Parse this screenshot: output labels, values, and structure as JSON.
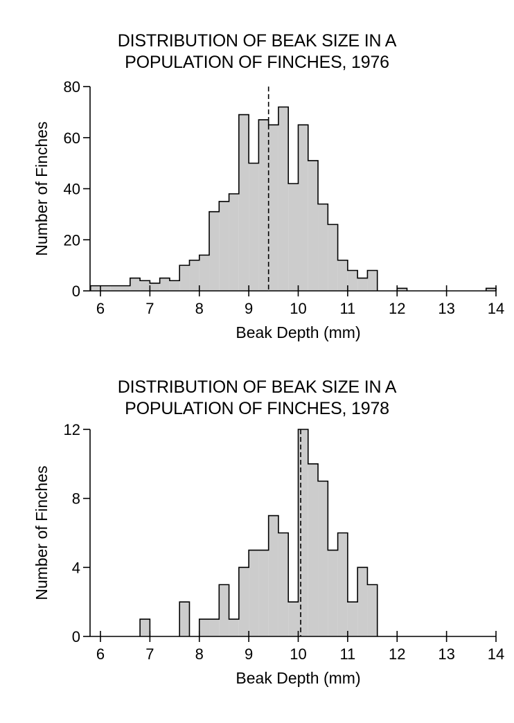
{
  "chart_data": [
    {
      "type": "bar",
      "title_line1": "DISTRIBUTION OF BEAK SIZE IN A",
      "title_line2": "POPULATION OF FINCHES, 1976",
      "xlabel": "Beak Depth (mm)",
      "ylabel": "Number of Finches",
      "xlim": [
        5.8,
        14
      ],
      "ylim": [
        0,
        80
      ],
      "xticks": [
        6,
        7,
        8,
        9,
        10,
        11,
        12,
        13,
        14
      ],
      "yticks": [
        0,
        20,
        40,
        60,
        80
      ],
      "bin_width": 0.2,
      "bins": [
        {
          "x": 5.8,
          "value": 2
        },
        {
          "x": 6.0,
          "value": 2
        },
        {
          "x": 6.2,
          "value": 2
        },
        {
          "x": 6.4,
          "value": 2
        },
        {
          "x": 6.6,
          "value": 5
        },
        {
          "x": 6.8,
          "value": 4
        },
        {
          "x": 7.0,
          "value": 3
        },
        {
          "x": 7.2,
          "value": 5
        },
        {
          "x": 7.4,
          "value": 4
        },
        {
          "x": 7.6,
          "value": 10
        },
        {
          "x": 7.8,
          "value": 12
        },
        {
          "x": 8.0,
          "value": 14
        },
        {
          "x": 8.2,
          "value": 31
        },
        {
          "x": 8.4,
          "value": 35
        },
        {
          "x": 8.6,
          "value": 38
        },
        {
          "x": 8.8,
          "value": 69
        },
        {
          "x": 9.0,
          "value": 50
        },
        {
          "x": 9.2,
          "value": 67
        },
        {
          "x": 9.4,
          "value": 65
        },
        {
          "x": 9.6,
          "value": 72
        },
        {
          "x": 9.8,
          "value": 42
        },
        {
          "x": 10.0,
          "value": 65
        },
        {
          "x": 10.2,
          "value": 51
        },
        {
          "x": 10.4,
          "value": 34
        },
        {
          "x": 10.6,
          "value": 26
        },
        {
          "x": 10.8,
          "value": 12
        },
        {
          "x": 11.0,
          "value": 8
        },
        {
          "x": 11.2,
          "value": 5
        },
        {
          "x": 11.4,
          "value": 8
        },
        {
          "x": 12.0,
          "value": 1
        },
        {
          "x": 13.8,
          "value": 1
        }
      ],
      "mean_line_x": 9.4
    },
    {
      "type": "bar",
      "title_line1": "DISTRIBUTION OF BEAK SIZE IN A",
      "title_line2": "POPULATION OF FINCHES, 1978",
      "xlabel": "Beak Depth (mm)",
      "ylabel": "Number of Finches",
      "xlim": [
        5.8,
        14
      ],
      "ylim": [
        0,
        12
      ],
      "xticks": [
        6,
        7,
        8,
        9,
        10,
        11,
        12,
        13,
        14
      ],
      "yticks": [
        0,
        4,
        8,
        12
      ],
      "bin_width": 0.2,
      "bins": [
        {
          "x": 6.8,
          "value": 1
        },
        {
          "x": 7.6,
          "value": 2
        },
        {
          "x": 8.0,
          "value": 1
        },
        {
          "x": 8.2,
          "value": 1
        },
        {
          "x": 8.4,
          "value": 3
        },
        {
          "x": 8.6,
          "value": 1
        },
        {
          "x": 8.8,
          "value": 4
        },
        {
          "x": 9.0,
          "value": 5
        },
        {
          "x": 9.2,
          "value": 5
        },
        {
          "x": 9.4,
          "value": 7
        },
        {
          "x": 9.6,
          "value": 6
        },
        {
          "x": 9.8,
          "value": 2
        },
        {
          "x": 10.0,
          "value": 12
        },
        {
          "x": 10.2,
          "value": 10
        },
        {
          "x": 10.4,
          "value": 9
        },
        {
          "x": 10.6,
          "value": 5
        },
        {
          "x": 10.8,
          "value": 6
        },
        {
          "x": 11.0,
          "value": 2
        },
        {
          "x": 11.2,
          "value": 4
        },
        {
          "x": 11.4,
          "value": 3
        }
      ],
      "mean_line_x": 10.05
    }
  ],
  "colors": {
    "bar_fill": "#cccccc",
    "stroke": "#000000",
    "background": "#ffffff"
  }
}
